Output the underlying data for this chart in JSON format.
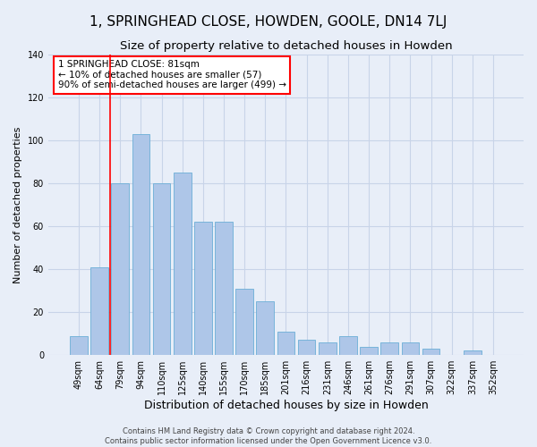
{
  "title": "1, SPRINGHEAD CLOSE, HOWDEN, GOOLE, DN14 7LJ",
  "subtitle": "Size of property relative to detached houses in Howden",
  "xlabel": "Distribution of detached houses by size in Howden",
  "ylabel": "Number of detached properties",
  "categories": [
    "49sqm",
    "64sqm",
    "79sqm",
    "94sqm",
    "110sqm",
    "125sqm",
    "140sqm",
    "155sqm",
    "170sqm",
    "185sqm",
    "201sqm",
    "216sqm",
    "231sqm",
    "246sqm",
    "261sqm",
    "276sqm",
    "291sqm",
    "307sqm",
    "322sqm",
    "337sqm",
    "352sqm"
  ],
  "values": [
    9,
    41,
    80,
    103,
    80,
    85,
    62,
    62,
    31,
    25,
    11,
    7,
    6,
    9,
    4,
    6,
    6,
    3,
    0,
    2,
    0
  ],
  "bar_color": "#aec6e8",
  "bar_edge_color": "#6baed6",
  "grid_color": "#c8d4e8",
  "bg_color": "#e8eef8",
  "red_line_x": 1.5,
  "annotation_text": "1 SPRINGHEAD CLOSE: 81sqm\n← 10% of detached houses are smaller (57)\n90% of semi-detached houses are larger (499) →",
  "annotation_box_color": "white",
  "annotation_box_edge": "red",
  "footer_text": "Contains HM Land Registry data © Crown copyright and database right 2024.\nContains public sector information licensed under the Open Government Licence v3.0.",
  "ylim": [
    0,
    140
  ],
  "yticks": [
    0,
    20,
    40,
    60,
    80,
    100,
    120,
    140
  ],
  "title_fontsize": 11,
  "subtitle_fontsize": 9.5,
  "xlabel_fontsize": 9,
  "ylabel_fontsize": 8,
  "tick_fontsize": 7,
  "annotation_fontsize": 7.5,
  "footer_fontsize": 6
}
